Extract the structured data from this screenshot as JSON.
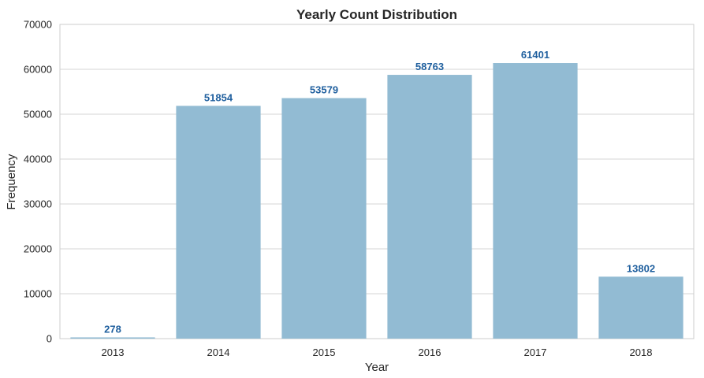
{
  "chart_data": {
    "type": "bar",
    "title": "Yearly Count Distribution",
    "xlabel": "Year",
    "ylabel": "Frequency",
    "categories": [
      "2013",
      "2014",
      "2015",
      "2016",
      "2017",
      "2018"
    ],
    "values": [
      278,
      51854,
      53579,
      58763,
      61401,
      13802
    ],
    "data_labels": [
      "278",
      "51854",
      "53579",
      "58763",
      "61401",
      "13802"
    ],
    "ylim": [
      0,
      70000
    ],
    "yticks": [
      0,
      10000,
      20000,
      30000,
      40000,
      50000,
      60000,
      70000
    ],
    "ytick_labels": [
      "0",
      "10000",
      "20000",
      "30000",
      "40000",
      "50000",
      "60000",
      "70000"
    ],
    "grid": "y",
    "legend": "none",
    "colors": {
      "bar": "#92bbd3",
      "label": "#1f5f9e",
      "grid": "#d5d5d5",
      "frame": "#cccccc"
    }
  }
}
